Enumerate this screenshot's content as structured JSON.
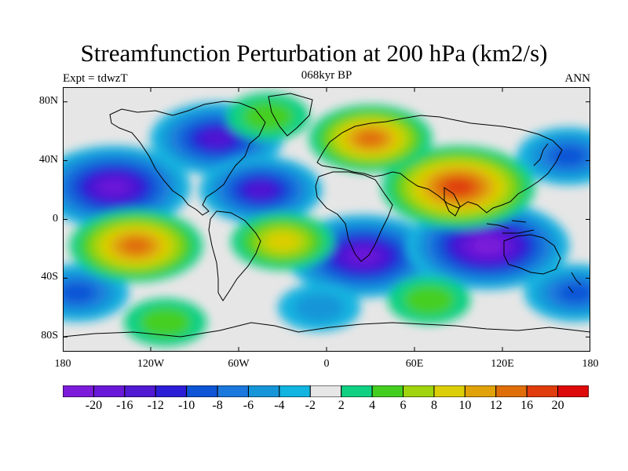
{
  "title": "Streamfunction Perturbation at 200 hPa (km2/s)",
  "left_string": "Expt = tdwzT",
  "center_string": "068kyr BP",
  "right_string": "ANN",
  "map": {
    "projection": "cylindrical equidistant",
    "lon_range": [
      -180,
      180
    ],
    "lat_range": [
      -90,
      90
    ],
    "background_color": "#e6e6e6",
    "x_ticks": [
      "180",
      "120W",
      "60W",
      "0",
      "60E",
      "120E",
      "180"
    ],
    "y_ticks": [
      "80N",
      "40N",
      "0",
      "40S",
      "80S"
    ]
  },
  "colorbar": {
    "labels": [
      "-20",
      "-16",
      "-12",
      "-10",
      "-8",
      "-6",
      "-4",
      "-2",
      "2",
      "4",
      "6",
      "8",
      "10",
      "12",
      "16",
      "20"
    ],
    "colors": [
      "#7c1bd9",
      "#6a18d8",
      "#5119d2",
      "#2c1ed6",
      "#0e55d6",
      "#1b78dc",
      "#1696d8",
      "#12b4e0",
      "#e6e6e6",
      "#10d082",
      "#44cf20",
      "#a0d40e",
      "#dcce06",
      "#e0a208",
      "#e06e08",
      "#e03c0c",
      "#de0a0a"
    ]
  },
  "features": {
    "negative_centers": [
      {
        "lon": -75,
        "lat": 55,
        "level": -14
      },
      {
        "lon": -145,
        "lat": 22,
        "level": -18
      },
      {
        "lon": -45,
        "lat": 20,
        "level": -12
      },
      {
        "lon": 25,
        "lat": -25,
        "level": -18
      },
      {
        "lon": 110,
        "lat": -18,
        "level": -20
      },
      {
        "lon": 170,
        "lat": -50,
        "level": -8
      },
      {
        "lon": -170,
        "lat": -50,
        "level": -8
      },
      {
        "lon": 165,
        "lat": 43,
        "level": -8
      },
      {
        "lon": -5,
        "lat": -60,
        "level": -4
      }
    ],
    "positive_centers": [
      {
        "lon": 90,
        "lat": 22,
        "level": 18
      },
      {
        "lon": 30,
        "lat": 55,
        "level": 12
      },
      {
        "lon": -130,
        "lat": -18,
        "level": 14
      },
      {
        "lon": -30,
        "lat": -15,
        "level": 8
      },
      {
        "lon": 70,
        "lat": -55,
        "level": 4
      },
      {
        "lon": -40,
        "lat": 70,
        "level": 4
      },
      {
        "lon": -110,
        "lat": -70,
        "level": 4
      }
    ]
  }
}
